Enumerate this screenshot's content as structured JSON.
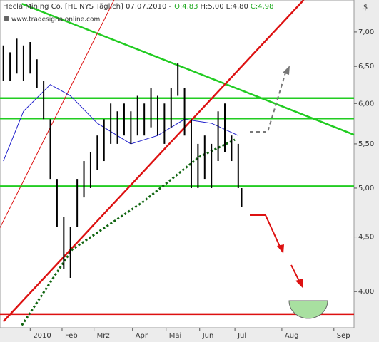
{
  "chart_data": {
    "type": "ohlc",
    "title": "Hecla Mining Co. [HL NYS  Täglich] 07.07.2010 -",
    "ohlc": [
      {
        "value": 4.83,
        "label": "O:4,83",
        "color": "#22aa22"
      },
      {
        "value": 5.0,
        "label": "H:5,00",
        "color": "#333333"
      },
      {
        "value": 4.8,
        "label": "L:4,80",
        "color": "#333333"
      },
      {
        "value": 4.98,
        "label": "C:4,98",
        "color": "#22aa22"
      }
    ],
    "watermark": "www.tradesignalonline.com",
    "currency": "$",
    "log_scale": true,
    "color": "#000000",
    "x": [
      -16,
      -12,
      -8,
      -4,
      0,
      4,
      8,
      12,
      16,
      20,
      24,
      28,
      32,
      36,
      40,
      44,
      48,
      52,
      56,
      60,
      64,
      68,
      72,
      76,
      80,
      84,
      88,
      92,
      96,
      100,
      104,
      108,
      112,
      116,
      120,
      124,
      126
    ],
    "high": [
      6.8,
      6.7,
      6.9,
      6.8,
      6.85,
      6.6,
      6.3,
      5.8,
      5.1,
      4.7,
      4.6,
      5.1,
      5.3,
      5.4,
      5.6,
      5.8,
      6.0,
      5.9,
      6.0,
      5.9,
      6.1,
      6.0,
      6.2,
      6.1,
      6.0,
      6.2,
      6.55,
      6.2,
      5.8,
      5.5,
      5.6,
      5.5,
      5.9,
      6.0,
      5.6,
      5.5,
      5.0
    ],
    "low": [
      6.3,
      6.3,
      6.4,
      6.3,
      6.4,
      6.2,
      5.8,
      5.1,
      4.6,
      4.2,
      4.12,
      4.6,
      4.9,
      5.0,
      5.2,
      5.3,
      5.5,
      5.5,
      5.6,
      5.5,
      5.6,
      5.6,
      5.7,
      5.6,
      5.5,
      5.7,
      6.1,
      5.6,
      5.0,
      5.0,
      5.1,
      5.0,
      5.3,
      5.4,
      5.3,
      5.0,
      4.8
    ],
    "overlays": [
      {
        "color": "#22cc22",
        "style": "thick",
        "x": [
          -18,
          193
        ],
        "values": [
          6.07,
          6.07
        ]
      },
      {
        "color": "#22cc22",
        "style": "thick",
        "x": [
          -18,
          193
        ],
        "values": [
          5.81,
          5.81
        ]
      },
      {
        "color": "#22cc22",
        "style": "thick",
        "x": [
          -18,
          193
        ],
        "values": [
          5.02,
          5.02
        ]
      },
      {
        "color": "#dd1111",
        "style": "thick",
        "x": [
          -18,
          193
        ],
        "values": [
          3.81,
          3.81
        ]
      },
      {
        "color": "#22cc22",
        "style": "thick",
        "x": [
          -5,
          193
        ],
        "values": [
          7.44,
          5.61
        ]
      },
      {
        "color": "#dd1111",
        "style": "thick",
        "x": [
          -16,
          163
        ],
        "values": [
          3.75,
          7.5
        ]
      },
      {
        "color": "#dd1111",
        "style": "thin",
        "x": [
          -18,
          50
        ],
        "values": [
          4.59,
          7.5
        ]
      },
      {
        "color": "#2222cc",
        "style": "thin",
        "x": [
          -16,
          -4,
          12,
          24,
          40,
          60,
          76,
          92,
          108,
          124
        ],
        "values": [
          5.3,
          5.9,
          6.25,
          6.1,
          5.75,
          5.5,
          5.6,
          5.8,
          5.75,
          5.6
        ]
      },
      {
        "color": "#116611",
        "style": "dotted",
        "x": [
          -5,
          25,
          67,
          101,
          122
        ],
        "values": [
          3.72,
          4.38,
          4.85,
          5.35,
          5.55
        ]
      }
    ],
    "xlim": [
      -18,
      193
    ],
    "ylim": [
      3.7,
      7.5
    ],
    "xticks": [
      {
        "value": 0,
        "label": "2010"
      },
      {
        "value": 19,
        "label": "Feb"
      },
      {
        "value": 38,
        "label": "Mrz"
      },
      {
        "value": 61,
        "label": "Apr"
      },
      {
        "value": 81,
        "label": "Mai"
      },
      {
        "value": 101,
        "label": "Jun"
      },
      {
        "value": 122,
        "label": "Jul"
      },
      {
        "value": 150,
        "label": "Aug"
      },
      {
        "value": 181,
        "label": "Sep"
      }
    ],
    "yticks": [
      {
        "value": 4,
        "label": "4,00"
      },
      {
        "value": 4.5,
        "label": "4,50"
      },
      {
        "value": 5,
        "label": "5,00"
      },
      {
        "value": 5.5,
        "label": "5,50"
      },
      {
        "value": 6,
        "label": "6,00"
      },
      {
        "value": 6.5,
        "label": "6,50"
      },
      {
        "value": 7,
        "label": "7,00"
      }
    ]
  }
}
